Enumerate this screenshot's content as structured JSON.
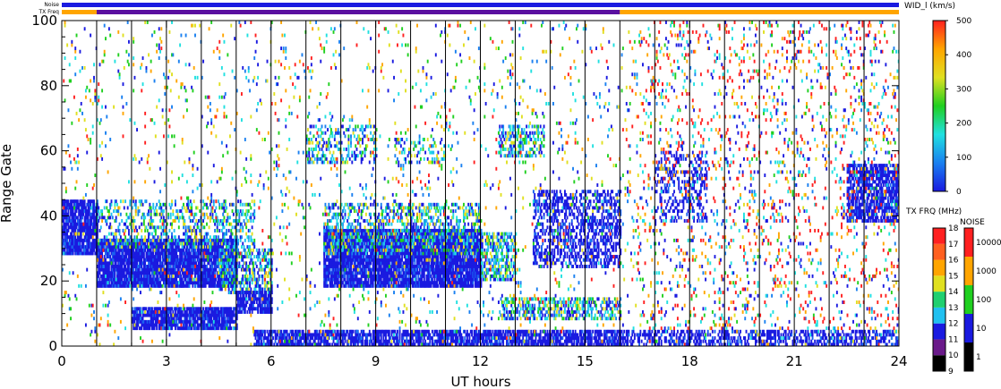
{
  "chart_data": {
    "type": "heatmap",
    "title": "",
    "xlabel": "UT hours",
    "ylabel": "Range Gate",
    "xlim": [
      0,
      24
    ],
    "ylim": [
      0,
      100
    ],
    "x_ticks": [
      "0",
      "3",
      "6",
      "9",
      "12",
      "15",
      "18",
      "21",
      "24"
    ],
    "y_ticks": [
      "0",
      "20",
      "40",
      "60",
      "80",
      "100"
    ],
    "vertical_markers_ut": [
      1,
      2,
      3,
      4,
      5,
      6,
      7,
      8,
      9,
      10,
      11,
      12,
      13,
      14,
      15,
      16,
      17,
      18,
      19,
      20,
      21,
      22,
      23
    ],
    "echo_regions": [
      {
        "ut": [
          0,
          1
        ],
        "gate": [
          28,
          45
        ],
        "level": "low",
        "density": 0.85
      },
      {
        "ut": [
          1,
          5
        ],
        "gate": [
          18,
          33
        ],
        "level": "low",
        "density": 0.9
      },
      {
        "ut": [
          1,
          5.5
        ],
        "gate": [
          30,
          45
        ],
        "level": "mixed",
        "density": 0.3
      },
      {
        "ut": [
          4.5,
          6
        ],
        "gate": [
          16,
          30
        ],
        "level": "mixed",
        "density": 0.55
      },
      {
        "ut": [
          2,
          5
        ],
        "gate": [
          5,
          12
        ],
        "level": "low",
        "density": 0.85
      },
      {
        "ut": [
          5,
          6
        ],
        "gate": [
          10,
          17
        ],
        "level": "low",
        "density": 0.8
      },
      {
        "ut": [
          5.5,
          16
        ],
        "gate": [
          0,
          5
        ],
        "level": "low",
        "density": 0.75
      },
      {
        "ut": [
          7.5,
          12
        ],
        "gate": [
          18,
          36
        ],
        "level": "low",
        "density": 0.9
      },
      {
        "ut": [
          7.5,
          12
        ],
        "gate": [
          28,
          44
        ],
        "level": "mixed",
        "density": 0.4
      },
      {
        "ut": [
          12,
          13
        ],
        "gate": [
          20,
          35
        ],
        "level": "mixed",
        "density": 0.5
      },
      {
        "ut": [
          12.5,
          16
        ],
        "gate": [
          8,
          15
        ],
        "level": "mixed",
        "density": 0.45
      },
      {
        "ut": [
          13.5,
          16
        ],
        "gate": [
          24,
          48
        ],
        "level": "low",
        "density": 0.45
      },
      {
        "ut": [
          7,
          9
        ],
        "gate": [
          56,
          68
        ],
        "level": "mixed",
        "density": 0.3
      },
      {
        "ut": [
          9.5,
          11
        ],
        "gate": [
          56,
          64
        ],
        "level": "mixed",
        "density": 0.25
      },
      {
        "ut": [
          12.5,
          13.8
        ],
        "gate": [
          58,
          68
        ],
        "level": "mixed",
        "density": 0.4
      },
      {
        "ut": [
          16,
          24
        ],
        "gate": [
          0,
          5
        ],
        "level": "low",
        "density": 0.45
      },
      {
        "ut": [
          17,
          18.5
        ],
        "gate": [
          38,
          60
        ],
        "level": "low",
        "density": 0.3
      },
      {
        "ut": [
          22.5,
          24
        ],
        "gate": [
          38,
          56
        ],
        "level": "low",
        "density": 0.7
      },
      {
        "ut": [
          0,
          24
        ],
        "gate": [
          0,
          100
        ],
        "level": "sparse",
        "density": 0.035
      },
      {
        "ut": [
          16.5,
          24
        ],
        "gate": [
          5,
          100
        ],
        "level": "high",
        "density": 0.05
      }
    ],
    "top_bars": [
      {
        "name": "Noise",
        "segments": [
          {
            "ut": [
              0,
              24
            ],
            "color": "#1a1ae0"
          }
        ]
      },
      {
        "name": "TX Freq",
        "segments": [
          {
            "ut": [
              0,
              1
            ],
            "color": "#ffa500"
          },
          {
            "ut": [
              1,
              16
            ],
            "color": "#5a10a0"
          },
          {
            "ut": [
              16,
              24
            ],
            "color": "#ffa500"
          }
        ]
      }
    ]
  },
  "colorbar_width": {
    "label": "WID_l (km/s)",
    "ticks": [
      "0",
      "100",
      "200",
      "300",
      "400",
      "500"
    ],
    "range": [
      0,
      500
    ],
    "stops": [
      "#1a1ae0",
      "#1a80f0",
      "#20e0e0",
      "#20d020",
      "#e0e020",
      "#ffa500",
      "#ff2020"
    ]
  },
  "colorbar_txfreq": {
    "label": "TX FRQ (MHz)",
    "ticks": [
      "9",
      "10",
      "11",
      "12",
      "13",
      "14",
      "15",
      "16",
      "17",
      "18"
    ],
    "colors": [
      "#000000",
      "#6a1a8a",
      "#1a1ae0",
      "#20c0f0",
      "#20d070",
      "#e0e020",
      "#ffa500",
      "#ff6020",
      "#ff2020"
    ]
  },
  "colorbar_noise": {
    "label": "NOISE",
    "ticks": [
      "1",
      "10",
      "100",
      "1000",
      "10000"
    ],
    "colors": [
      "#000000",
      "#1a1ae0",
      "#20d020",
      "#ffa500",
      "#ff2020"
    ]
  },
  "top_labels": {
    "noise": "Noise",
    "txfreq": "TX Freq"
  }
}
